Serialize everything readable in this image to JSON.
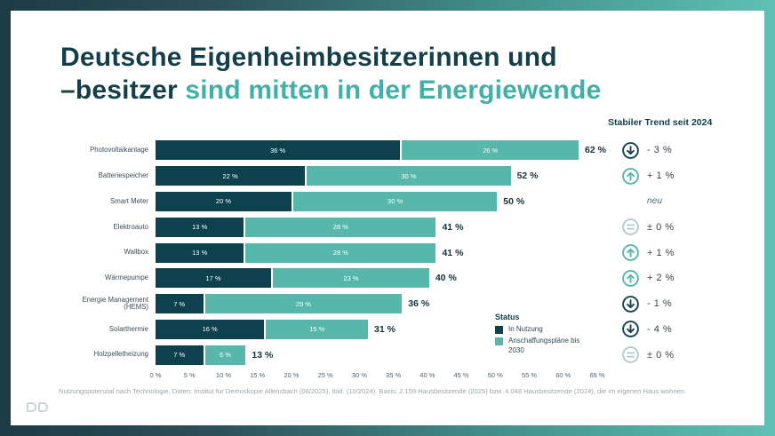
{
  "title": {
    "line1_dark": "Deutsche Eigenheimbesitzerinnen und",
    "line2_dark": "–besitzer",
    "line2_teal": "sind mitten in der Energiewende"
  },
  "trend": {
    "header": "Stabiler Trend seit 2024",
    "items": [
      {
        "category": "Photovoltaikanlage",
        "icon": "down",
        "value": "- 3 %"
      },
      {
        "category": "Batteriespeicher",
        "icon": "up",
        "value": "+ 1 %"
      },
      {
        "category": "Smart Meter",
        "icon": "none",
        "value": "neu"
      },
      {
        "category": "Elektroauto",
        "icon": "equal",
        "value": "± 0 %"
      },
      {
        "category": "Wallbox",
        "icon": "up",
        "value": "+ 1 %"
      },
      {
        "category": "Wärmepumpe",
        "icon": "up",
        "value": "+ 2 %"
      },
      {
        "category": "Energie Management (HEMS)",
        "icon": "down",
        "value": "- 1 %"
      },
      {
        "category": "Solarthermie",
        "icon": "down",
        "value": "- 4 %"
      },
      {
        "category": "Holzpelletheizung",
        "icon": "equal",
        "value": "± 0 %"
      }
    ]
  },
  "legend": {
    "title": "Status",
    "items": [
      {
        "label": "In Nutzung"
      },
      {
        "label": "Anschaffungspläne bis 2030"
      }
    ]
  },
  "footer": {
    "note": "Nutzungspotenzial nach Technologie. Daten: Institut für Demoskopie Allensbach (08/2025), ibid. (10/2024). Basis: 2.159 Hausbesitzende (2025) bzw. 4.048 Hausbesitzende (2024), die im eigenen Haus wohnen."
  },
  "colors": {
    "in_nutzung": "#0d414e",
    "plaene": "#56b7aa",
    "trend_down": "#16424d",
    "trend_up": "#56b7aa",
    "trend_equal": "#b4cbcd",
    "frame_dark": "#1d3b44",
    "frame_light": "#5fc0b4",
    "title_dark": "#123f4a",
    "title_teal": "#41b0a8"
  },
  "chart_data": {
    "type": "bar",
    "orientation": "horizontal",
    "stacked": true,
    "title": "Deutsche Eigenheimbesitzerinnen und –besitzer sind mitten in der Energiewende",
    "categories": [
      "Photovoltaikanlage",
      "Batteriespeicher",
      "Smart Meter",
      "Elektroauto",
      "Wallbox",
      "Wärmepumpe",
      "Energie Management (HEMS)",
      "Solarthermie",
      "Holzpelletheizung"
    ],
    "series": [
      {
        "name": "In Nutzung",
        "color": "#0d414e",
        "values": [
          36,
          22,
          20,
          13,
          13,
          17,
          7,
          16,
          7
        ]
      },
      {
        "name": "Anschaffungspläne bis 2030",
        "color": "#56b7aa",
        "values": [
          26,
          30,
          30,
          28,
          28,
          23,
          29,
          15,
          6
        ]
      }
    ],
    "totals": [
      62,
      52,
      50,
      41,
      41,
      40,
      36,
      31,
      13
    ],
    "xlabel": "",
    "ylabel": "",
    "xlim": [
      0,
      65
    ],
    "x_ticks": [
      "0 %",
      "5 %",
      "10 %",
      "15 %",
      "20 %",
      "25 %",
      "30 %",
      "35 %",
      "40 %",
      "45 %",
      "50 %",
      "55 %",
      "60 %",
      "65 %"
    ],
    "grid": false,
    "legend_position": "bottom-right",
    "value_suffix": " %"
  }
}
